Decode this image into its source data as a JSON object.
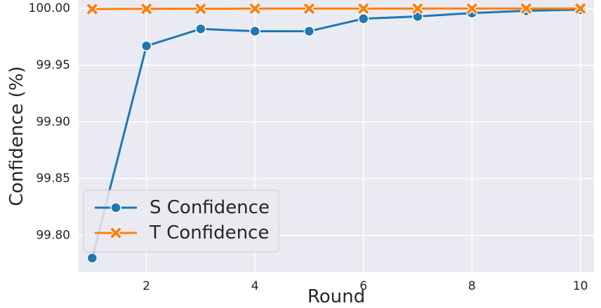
{
  "chart_data": {
    "type": "line",
    "xlabel": "Round",
    "ylabel": "Confidence (%)",
    "x": [
      1,
      2,
      3,
      4,
      5,
      6,
      7,
      8,
      9,
      10
    ],
    "xticks": [
      2,
      4,
      6,
      8,
      10
    ],
    "yticks": [
      "99.80",
      "99.85",
      "99.90",
      "99.95",
      "100.00"
    ],
    "xlim": [
      0.75,
      10.25
    ],
    "ylim": [
      99.7675,
      100.0075
    ],
    "grid": true,
    "background": "#eaeaf2",
    "legend_position": "lower-left",
    "series": [
      {
        "name": "S Confidence",
        "color": "#1f77b4",
        "marker": "circle",
        "values": [
          99.78,
          99.967,
          99.982,
          99.98,
          99.98,
          99.991,
          99.993,
          99.996,
          99.998,
          99.999
        ]
      },
      {
        "name": "T Confidence",
        "color": "#ff7f0e",
        "marker": "x",
        "values": [
          99.9995,
          99.9997,
          99.9998,
          99.9999,
          99.9999,
          99.99995,
          99.99996,
          99.99998,
          99.99999,
          100.0
        ]
      }
    ]
  }
}
